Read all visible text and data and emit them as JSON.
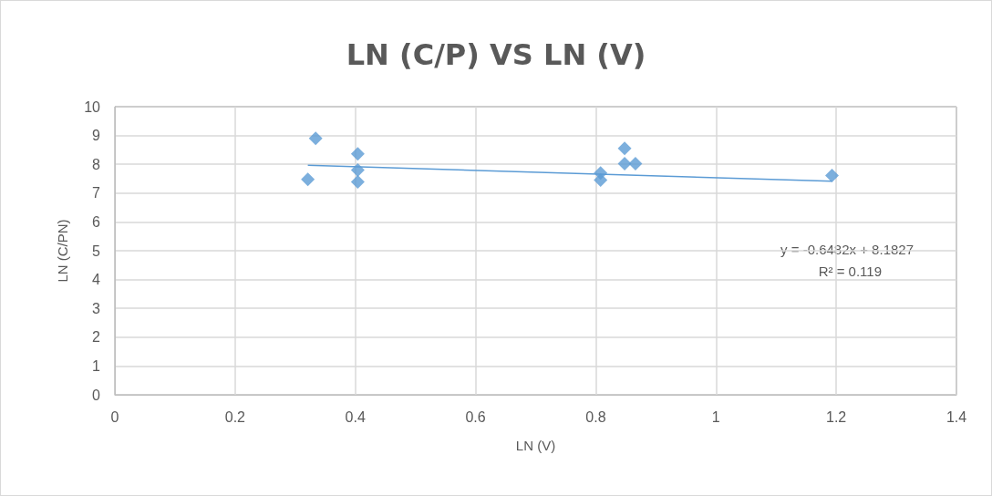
{
  "chart_data": {
    "type": "scatter",
    "title": "LN (C/P) VS LN (V)",
    "xlabel": "LN (V)",
    "ylabel": "LN (C/PN)",
    "xlim": [
      0,
      1.4
    ],
    "xticks": [
      0,
      0.2,
      0.4,
      0.6,
      0.8,
      1,
      1.2,
      1.4
    ],
    "ylim": [
      0,
      10
    ],
    "yticks": [
      0,
      1,
      2,
      3,
      4,
      5,
      6,
      7,
      8,
      9,
      10
    ],
    "grid": true,
    "marker": "diamond",
    "series": [
      {
        "type": "scatter",
        "color": "#5b9bd5",
        "x": [
          0.321,
          0.334,
          0.404,
          0.404,
          0.404,
          0.808,
          0.808,
          0.848,
          0.848,
          0.866,
          1.193
        ],
        "values": [
          7.48,
          8.9,
          8.36,
          7.8,
          7.39,
          7.45,
          7.7,
          8.55,
          8.02,
          8.02,
          7.61
        ]
      },
      {
        "type": "line",
        "color": "#5b9bd5",
        "marker": "none",
        "x": [
          0.321,
          1.193
        ],
        "values": [
          7.97,
          7.41
        ]
      }
    ],
    "annotations": [
      "y = -0.6482x + 8.1827",
      "R² = 0.119"
    ]
  }
}
